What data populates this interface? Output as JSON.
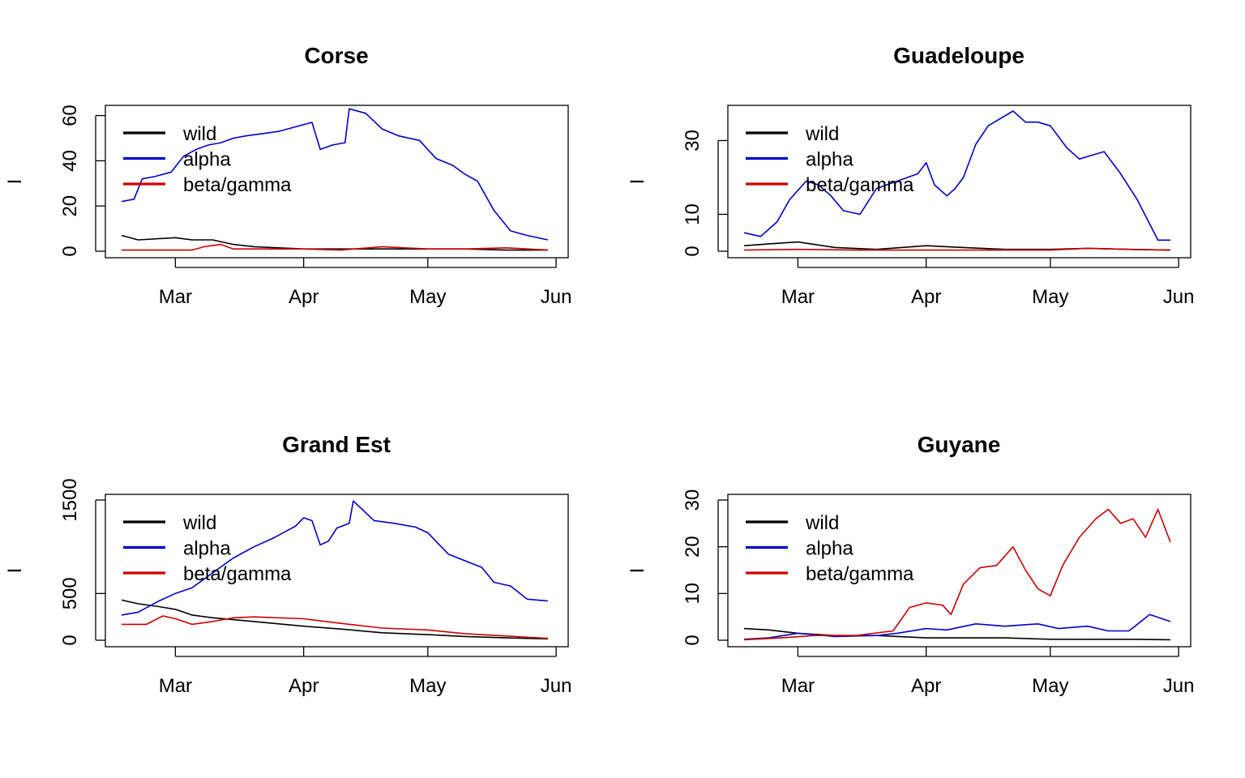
{
  "figure": {
    "ylabel": "I",
    "x_ticks": [
      "Mar",
      "Apr",
      "May",
      "Jun"
    ],
    "legend_entries": [
      "wild",
      "alpha",
      "beta/gamma"
    ],
    "colors": {
      "wild": "#000000",
      "alpha": "#0000CD",
      "beta/gamma": "#CD0000"
    }
  },
  "chart_data": [
    {
      "type": "line",
      "title": "Corse",
      "xlabel": "",
      "ylabel": "I",
      "xlim": [
        "2021-02-16",
        "2021-05-31"
      ],
      "ylim": [
        0,
        62
      ],
      "y_ticks": [
        0,
        20,
        40,
        60
      ],
      "legend": "top-left",
      "series": [
        {
          "name": "wild",
          "color": "#000000",
          "x": [
            "2021-02-16",
            "2021-02-20",
            "2021-03-01",
            "2021-03-05",
            "2021-03-10",
            "2021-03-15",
            "2021-03-20",
            "2021-04-01",
            "2021-04-10",
            "2021-04-20",
            "2021-05-01",
            "2021-05-10",
            "2021-05-20",
            "2021-05-30"
          ],
          "y": [
            7,
            5,
            6,
            5,
            5,
            3,
            2,
            1,
            1,
            1,
            1,
            1,
            0.5,
            0.5
          ]
        },
        {
          "name": "alpha",
          "color": "#0000CD",
          "x": [
            "2021-02-16",
            "2021-02-19",
            "2021-02-21",
            "2021-02-24",
            "2021-02-28",
            "2021-03-03",
            "2021-03-06",
            "2021-03-09",
            "2021-03-12",
            "2021-03-15",
            "2021-03-18",
            "2021-03-22",
            "2021-03-26",
            "2021-03-30",
            "2021-04-03",
            "2021-04-05",
            "2021-04-08",
            "2021-04-11",
            "2021-04-12",
            "2021-04-16",
            "2021-04-20",
            "2021-04-24",
            "2021-04-29",
            "2021-05-03",
            "2021-05-07",
            "2021-05-10",
            "2021-05-13",
            "2021-05-17",
            "2021-05-21",
            "2021-05-25",
            "2021-05-30"
          ],
          "y": [
            22,
            23,
            32,
            33,
            35,
            42,
            45,
            47,
            48,
            50,
            51,
            52,
            53,
            55,
            57,
            45,
            47,
            48,
            63,
            61,
            54,
            51,
            49,
            41,
            38,
            34,
            31,
            18,
            9,
            7,
            5
          ]
        },
        {
          "name": "beta/gamma",
          "color": "#CD0000",
          "x": [
            "2021-02-16",
            "2021-03-05",
            "2021-03-08",
            "2021-03-12",
            "2021-03-15",
            "2021-03-20",
            "2021-04-01",
            "2021-04-10",
            "2021-04-20",
            "2021-05-01",
            "2021-05-10",
            "2021-05-20",
            "2021-05-30"
          ],
          "y": [
            0.5,
            0.5,
            2,
            3,
            1,
            1,
            1,
            0.5,
            2,
            1,
            1,
            1.5,
            0.5
          ]
        }
      ]
    },
    {
      "type": "line",
      "title": "Guadeloupe",
      "xlabel": "",
      "ylabel": "I",
      "xlim": [
        "2021-02-16",
        "2021-05-31"
      ],
      "ylim": [
        0,
        38
      ],
      "y_ticks": [
        0,
        10,
        30
      ],
      "legend": "top-left",
      "series": [
        {
          "name": "wild",
          "color": "#000000",
          "x": [
            "2021-02-16",
            "2021-02-22",
            "2021-03-01",
            "2021-03-10",
            "2021-03-20",
            "2021-04-01",
            "2021-04-10",
            "2021-04-20",
            "2021-05-01",
            "2021-05-10",
            "2021-05-20",
            "2021-05-30"
          ],
          "y": [
            1.5,
            2,
            2.5,
            1,
            0.5,
            1.5,
            1,
            0.5,
            0.5,
            0.8,
            0.5,
            0.3
          ]
        },
        {
          "name": "alpha",
          "color": "#0000CD",
          "x": [
            "2021-02-16",
            "2021-02-20",
            "2021-02-24",
            "2021-02-27",
            "2021-03-03",
            "2021-03-06",
            "2021-03-09",
            "2021-03-12",
            "2021-03-16",
            "2021-03-20",
            "2021-03-25",
            "2021-03-30",
            "2021-04-01",
            "2021-04-03",
            "2021-04-06",
            "2021-04-08",
            "2021-04-10",
            "2021-04-13",
            "2021-04-16",
            "2021-04-19",
            "2021-04-22",
            "2021-04-25",
            "2021-04-28",
            "2021-05-01",
            "2021-05-05",
            "2021-05-08",
            "2021-05-11",
            "2021-05-14",
            "2021-05-18",
            "2021-05-22",
            "2021-05-27",
            "2021-05-30"
          ],
          "y": [
            5,
            4,
            8,
            14,
            19,
            18,
            15,
            11,
            10,
            17,
            19,
            21,
            24,
            18,
            15,
            17,
            20,
            29,
            34,
            36,
            38,
            35,
            35,
            34,
            28,
            25,
            26,
            27,
            21,
            14,
            3,
            3
          ]
        },
        {
          "name": "beta/gamma",
          "color": "#CD0000",
          "x": [
            "2021-02-16",
            "2021-03-01",
            "2021-03-15",
            "2021-04-01",
            "2021-04-15",
            "2021-05-01",
            "2021-05-10",
            "2021-05-20",
            "2021-05-30"
          ],
          "y": [
            0.3,
            0.5,
            0.3,
            0.3,
            0.3,
            0.3,
            0.8,
            0.5,
            0.3
          ]
        }
      ]
    },
    {
      "type": "line",
      "title": "Grand Est",
      "xlabel": "",
      "ylabel": "I",
      "xlim": [
        "2021-02-16",
        "2021-05-31"
      ],
      "ylim": [
        0,
        1500
      ],
      "y_ticks": [
        0,
        500,
        1500
      ],
      "legend": "top-left",
      "series": [
        {
          "name": "wild",
          "color": "#000000",
          "x": [
            "2021-02-16",
            "2021-02-20",
            "2021-02-25",
            "2021-03-01",
            "2021-03-05",
            "2021-03-10",
            "2021-03-15",
            "2021-03-20",
            "2021-04-01",
            "2021-04-10",
            "2021-04-20",
            "2021-05-01",
            "2021-05-10",
            "2021-05-20",
            "2021-05-30"
          ],
          "y": [
            430,
            390,
            360,
            330,
            270,
            240,
            220,
            200,
            150,
            120,
            80,
            60,
            40,
            25,
            15
          ]
        },
        {
          "name": "alpha",
          "color": "#0000CD",
          "x": [
            "2021-02-16",
            "2021-02-20",
            "2021-02-25",
            "2021-03-01",
            "2021-03-05",
            "2021-03-10",
            "2021-03-15",
            "2021-03-20",
            "2021-03-25",
            "2021-03-30",
            "2021-04-01",
            "2021-04-03",
            "2021-04-05",
            "2021-04-07",
            "2021-04-09",
            "2021-04-12",
            "2021-04-13",
            "2021-04-18",
            "2021-04-23",
            "2021-04-28",
            "2021-05-01",
            "2021-05-06",
            "2021-05-10",
            "2021-05-14",
            "2021-05-17",
            "2021-05-21",
            "2021-05-25",
            "2021-05-30"
          ],
          "y": [
            270,
            300,
            420,
            500,
            560,
            720,
            880,
            1000,
            1100,
            1220,
            1310,
            1280,
            1020,
            1060,
            1200,
            1250,
            1490,
            1280,
            1250,
            1210,
            1150,
            920,
            850,
            780,
            620,
            580,
            440,
            420
          ]
        },
        {
          "name": "beta/gamma",
          "color": "#CD0000",
          "x": [
            "2021-02-16",
            "2021-02-22",
            "2021-02-26",
            "2021-03-01",
            "2021-03-05",
            "2021-03-10",
            "2021-03-15",
            "2021-03-20",
            "2021-04-01",
            "2021-04-10",
            "2021-04-20",
            "2021-05-01",
            "2021-05-10",
            "2021-05-20",
            "2021-05-30"
          ],
          "y": [
            170,
            170,
            260,
            230,
            170,
            200,
            240,
            250,
            230,
            180,
            130,
            110,
            70,
            45,
            20
          ]
        }
      ]
    },
    {
      "type": "line",
      "title": "Guyane",
      "xlabel": "",
      "ylabel": "I",
      "xlim": [
        "2021-02-16",
        "2021-05-31"
      ],
      "ylim": [
        0,
        30
      ],
      "y_ticks": [
        0,
        10,
        20,
        30
      ],
      "legend": "top-left",
      "series": [
        {
          "name": "wild",
          "color": "#000000",
          "x": [
            "2021-02-16",
            "2021-02-22",
            "2021-03-01",
            "2021-03-10",
            "2021-03-20",
            "2021-04-01",
            "2021-04-10",
            "2021-04-20",
            "2021-05-01",
            "2021-05-10",
            "2021-05-20",
            "2021-05-30"
          ],
          "y": [
            2.5,
            2.2,
            1.5,
            1,
            1,
            0.5,
            0.5,
            0.5,
            0.2,
            0.2,
            0.2,
            0.1
          ]
        },
        {
          "name": "alpha",
          "color": "#0000CD",
          "x": [
            "2021-02-16",
            "2021-02-22",
            "2021-03-01",
            "2021-03-10",
            "2021-03-20",
            "2021-03-25",
            "2021-04-01",
            "2021-04-06",
            "2021-04-13",
            "2021-04-20",
            "2021-04-28",
            "2021-05-03",
            "2021-05-10",
            "2021-05-15",
            "2021-05-20",
            "2021-05-25",
            "2021-05-30"
          ],
          "y": [
            0.2,
            0.5,
            1.5,
            0.8,
            1,
            1.5,
            2.5,
            2.2,
            3.5,
            3,
            3.5,
            2.5,
            3,
            2,
            2,
            5.5,
            4
          ]
        },
        {
          "name": "beta/gamma",
          "color": "#CD0000",
          "x": [
            "2021-02-16",
            "2021-02-25",
            "2021-03-05",
            "2021-03-15",
            "2021-03-24",
            "2021-03-28",
            "2021-04-01",
            "2021-04-05",
            "2021-04-07",
            "2021-04-10",
            "2021-04-14",
            "2021-04-18",
            "2021-04-22",
            "2021-04-25",
            "2021-04-28",
            "2021-05-01",
            "2021-05-04",
            "2021-05-08",
            "2021-05-12",
            "2021-05-15",
            "2021-05-18",
            "2021-05-21",
            "2021-05-24",
            "2021-05-27",
            "2021-05-30"
          ],
          "y": [
            0.1,
            0.5,
            1,
            1,
            2,
            7,
            8,
            7.5,
            5.5,
            12,
            15.5,
            16,
            20,
            15,
            11,
            9.5,
            16,
            22,
            26,
            28,
            25,
            26,
            22,
            28,
            21
          ]
        }
      ]
    }
  ]
}
